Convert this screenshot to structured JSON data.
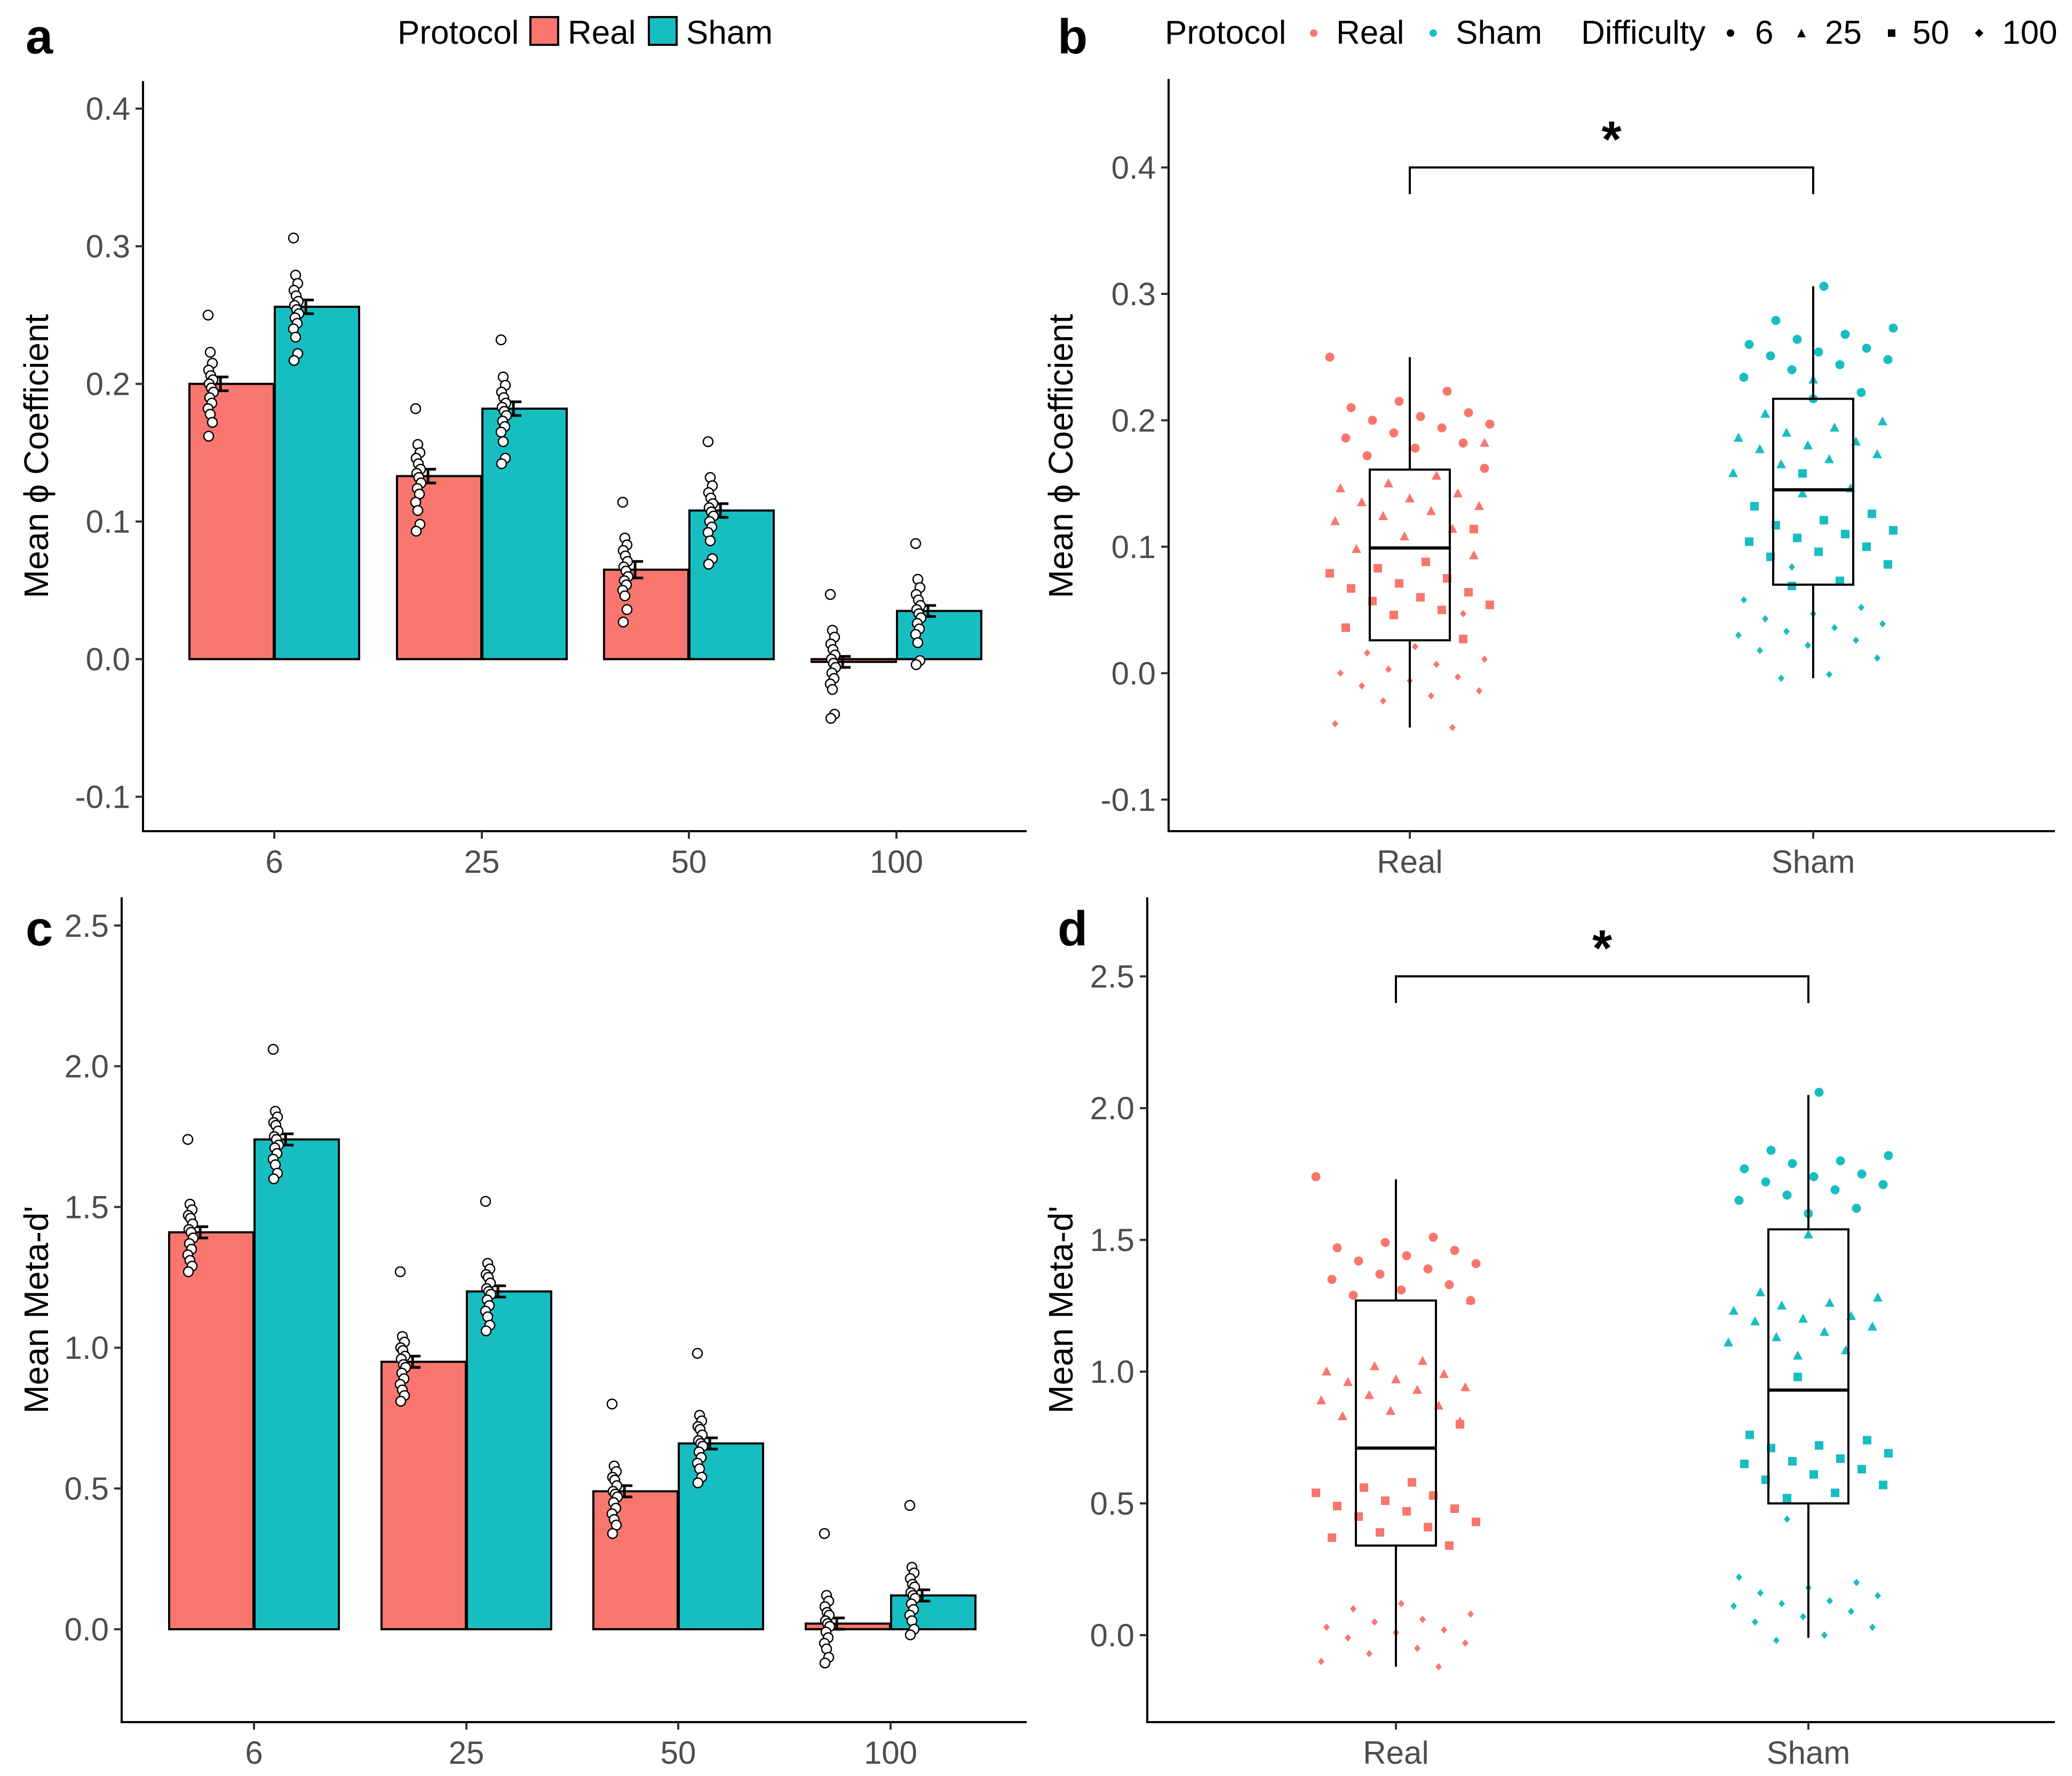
{
  "panels": {
    "a": {
      "letter": "a",
      "legend": {
        "title": "Protocol",
        "items": [
          "Real",
          "Sham"
        ]
      }
    },
    "b": {
      "letter": "b",
      "legend": {
        "title": "Protocol",
        "items": [
          "Real",
          "Sham"
        ],
        "shape_title": "Difficulty",
        "shape_items": [
          "6",
          "25",
          "50",
          "100"
        ]
      },
      "significance": "*"
    },
    "c": {
      "letter": "c"
    },
    "d": {
      "letter": "d",
      "significance": "*"
    }
  },
  "colors": {
    "real": "#F8766D",
    "sham": "#17BEC1",
    "outline": "#000000",
    "axis": "#000000"
  },
  "chart_data": [
    {
      "id": "a",
      "type": "bar",
      "categories": [
        "6",
        "25",
        "50",
        "100"
      ],
      "series": [
        {
          "name": "Real",
          "values": [
            0.2,
            0.133,
            0.065,
            -0.002
          ],
          "errors": [
            0.005,
            0.005,
            0.006,
            0.004
          ],
          "points": [
            [
              0.25,
              0.223,
              0.215,
              0.21,
              0.206,
              0.203,
              0.2,
              0.197,
              0.194,
              0.19,
              0.186,
              0.182,
              0.178,
              0.172,
              0.162
            ],
            [
              0.182,
              0.156,
              0.15,
              0.146,
              0.142,
              0.138,
              0.135,
              0.132,
              0.128,
              0.124,
              0.12,
              0.114,
              0.108,
              0.098,
              0.093
            ],
            [
              0.114,
              0.088,
              0.083,
              0.079,
              0.075,
              0.071,
              0.067,
              0.064,
              0.06,
              0.057,
              0.054,
              0.05,
              0.046,
              0.036,
              0.027
            ],
            [
              0.047,
              0.021,
              0.016,
              0.011,
              0.007,
              0.003,
              0.0,
              -0.003,
              -0.006,
              -0.01,
              -0.014,
              -0.018,
              -0.022,
              -0.04,
              -0.043
            ]
          ]
        },
        {
          "name": "Sham",
          "values": [
            0.256,
            0.182,
            0.108,
            0.035
          ],
          "errors": [
            0.005,
            0.005,
            0.005,
            0.004
          ],
          "points": [
            [
              0.306,
              0.279,
              0.273,
              0.268,
              0.264,
              0.26,
              0.257,
              0.254,
              0.251,
              0.248,
              0.244,
              0.24,
              0.234,
              0.222,
              0.217
            ],
            [
              0.232,
              0.205,
              0.199,
              0.194,
              0.19,
              0.186,
              0.183,
              0.18,
              0.177,
              0.173,
              0.169,
              0.165,
              0.158,
              0.146,
              0.142
            ],
            [
              0.158,
              0.132,
              0.126,
              0.121,
              0.117,
              0.113,
              0.11,
              0.107,
              0.104,
              0.1,
              0.096,
              0.092,
              0.086,
              0.073,
              0.069
            ],
            [
              0.084,
              0.058,
              0.052,
              0.047,
              0.043,
              0.039,
              0.036,
              0.033,
              0.03,
              0.026,
              0.022,
              0.018,
              0.012,
              -0.001,
              -0.004
            ]
          ]
        }
      ],
      "xlabel": "",
      "ylabel": "Mean ϕ Coefficient",
      "ylim": [
        -0.125,
        0.42
      ],
      "yticks": [
        -0.1,
        0.0,
        0.1,
        0.2,
        0.3,
        0.4
      ],
      "ytick_labels": [
        "-0.1",
        "0.0",
        "0.1",
        "0.2",
        "0.3",
        "0.4"
      ]
    },
    {
      "id": "b",
      "type": "boxplot",
      "categories": [
        "Real",
        "Sham"
      ],
      "boxes": [
        {
          "name": "Real",
          "q1": 0.026,
          "median": 0.099,
          "q3": 0.161,
          "whisker_low": -0.043,
          "whisker_high": 0.25
        },
        {
          "name": "Sham",
          "q1": 0.07,
          "median": 0.145,
          "q3": 0.217,
          "whisker_low": -0.004,
          "whisker_high": 0.306
        }
      ],
      "jitter_source": "a",
      "difficulty_levels": [
        "6",
        "25",
        "50",
        "100"
      ],
      "xlabel": "",
      "ylabel": "Mean ϕ Coefficient",
      "ylim": [
        -0.125,
        0.47
      ],
      "yticks": [
        -0.1,
        0.0,
        0.1,
        0.2,
        0.3,
        0.4
      ],
      "ytick_labels": [
        "-0.1",
        "0.0",
        "0.1",
        "0.2",
        "0.3",
        "0.4"
      ],
      "bracket_y": 0.4
    },
    {
      "id": "c",
      "type": "bar",
      "categories": [
        "6",
        "25",
        "50",
        "100"
      ],
      "series": [
        {
          "name": "Real",
          "values": [
            1.41,
            0.95,
            0.49,
            0.02
          ],
          "errors": [
            0.02,
            0.02,
            0.02,
            0.02
          ],
          "points": [
            [
              1.74,
              1.51,
              1.49,
              1.47,
              1.46,
              1.44,
              1.42,
              1.41,
              1.39,
              1.37,
              1.35,
              1.33,
              1.31,
              1.29,
              1.27
            ],
            [
              1.27,
              1.04,
              1.02,
              1.0,
              0.99,
              0.97,
              0.96,
              0.94,
              0.93,
              0.91,
              0.89,
              0.87,
              0.85,
              0.83,
              0.81
            ],
            [
              0.8,
              0.58,
              0.56,
              0.54,
              0.53,
              0.51,
              0.49,
              0.48,
              0.47,
              0.45,
              0.43,
              0.41,
              0.39,
              0.37,
              0.34
            ],
            [
              0.34,
              0.12,
              0.1,
              0.08,
              0.06,
              0.05,
              0.03,
              0.02,
              0.01,
              -0.01,
              -0.03,
              -0.05,
              -0.07,
              -0.1,
              -0.12
            ]
          ]
        },
        {
          "name": "Sham",
          "values": [
            1.74,
            1.2,
            0.66,
            0.12
          ],
          "errors": [
            0.02,
            0.02,
            0.02,
            0.02
          ],
          "points": [
            [
              2.06,
              1.84,
              1.82,
              1.8,
              1.79,
              1.77,
              1.75,
              1.74,
              1.72,
              1.71,
              1.69,
              1.67,
              1.65,
              1.62,
              1.6
            ],
            [
              1.52,
              1.3,
              1.28,
              1.26,
              1.25,
              1.23,
              1.21,
              1.2,
              1.19,
              1.17,
              1.15,
              1.13,
              1.11,
              1.08,
              1.06
            ],
            [
              0.98,
              0.76,
              0.74,
              0.72,
              0.71,
              0.69,
              0.67,
              0.66,
              0.65,
              0.63,
              0.61,
              0.59,
              0.57,
              0.54,
              0.52
            ],
            [
              0.44,
              0.22,
              0.2,
              0.18,
              0.16,
              0.15,
              0.13,
              0.12,
              0.11,
              0.09,
              0.07,
              0.05,
              0.03,
              0.0,
              -0.02
            ]
          ]
        }
      ],
      "xlabel": "",
      "ylabel": "Mean Meta-d'",
      "ylim": [
        -0.33,
        2.6
      ],
      "yticks": [
        0.0,
        0.5,
        1.0,
        1.5,
        2.0,
        2.5
      ],
      "ytick_labels": [
        "0.0",
        "0.5",
        "1.0",
        "1.5",
        "2.0",
        "2.5"
      ]
    },
    {
      "id": "d",
      "type": "boxplot",
      "categories": [
        "Real",
        "Sham"
      ],
      "boxes": [
        {
          "name": "Real",
          "q1": 0.34,
          "median": 0.71,
          "q3": 1.27,
          "whisker_low": -0.12,
          "whisker_high": 1.73
        },
        {
          "name": "Sham",
          "q1": 0.5,
          "median": 0.93,
          "q3": 1.54,
          "whisker_low": -0.01,
          "whisker_high": 2.05
        }
      ],
      "jitter_source": "c",
      "difficulty_levels": [
        "6",
        "25",
        "50",
        "100"
      ],
      "xlabel": "",
      "ylabel": "Mean Meta-d'",
      "ylim": [
        -0.33,
        2.8
      ],
      "yticks": [
        0.0,
        0.5,
        1.0,
        1.5,
        2.0,
        2.5
      ],
      "ytick_labels": [
        "0.0",
        "0.5",
        "1.0",
        "1.5",
        "2.0",
        "2.5"
      ],
      "bracket_y": 2.5
    }
  ]
}
